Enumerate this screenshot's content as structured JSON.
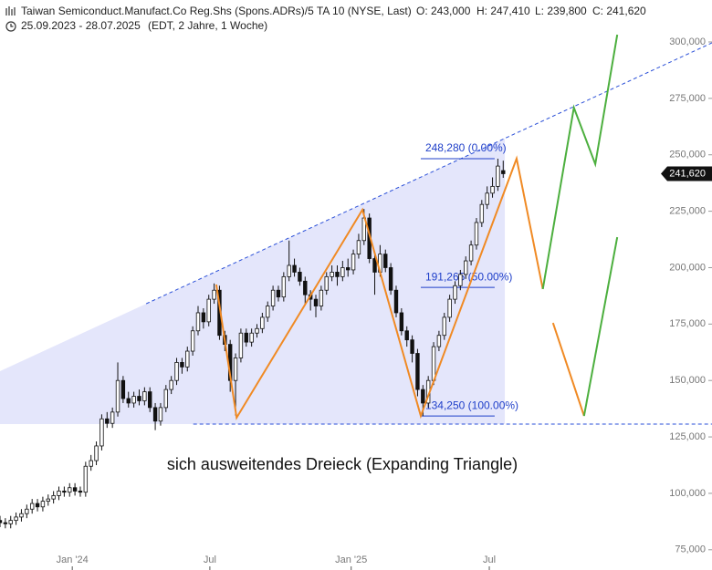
{
  "header": {
    "title": "Taiwan Semiconduct.Manufact.Co Reg.Shs (Spons.ADRs)/5 TA 10 (NYSE, Last)",
    "ohlc": [
      "O: 243,000",
      "H: 247,410",
      "L: 239,800",
      "C: 241,620"
    ],
    "range": "25.09.2023 - 28.07.2025",
    "info": "(EDT, 2 Jahre, 1 Woche)"
  },
  "chart_data": {
    "type": "candlestick",
    "open": [
      88000,
      87000,
      86500,
      88000,
      89500,
      91000,
      93000,
      95500,
      94000,
      96500,
      97500,
      99000,
      101000,
      100500,
      102500,
      101000,
      100500,
      112000,
      114500,
      121000,
      133000,
      131000,
      136000,
      150000,
      142000,
      140000,
      143000,
      141000,
      145000,
      138000,
      132000,
      138000,
      146000,
      150000,
      158000,
      156000,
      163000,
      172000,
      180000,
      176000,
      186000,
      190000,
      170000,
      166000,
      150000,
      160000,
      171000,
      167000,
      171000,
      173000,
      178000,
      183000,
      190000,
      187000,
      196000,
      201000,
      198000,
      194000,
      188000,
      186000,
      183000,
      190000,
      196000,
      198000,
      196000,
      200000,
      199000,
      206000,
      212000,
      222000,
      204000,
      198000,
      206000,
      200000,
      190000,
      180000,
      172000,
      168000,
      162000,
      146000,
      140000,
      150000,
      165000,
      170000,
      178000,
      186000,
      192000,
      197000,
      203000,
      210000,
      220000,
      228000,
      233000,
      236000,
      243000
    ],
    "high": [
      90000,
      89000,
      90000,
      91500,
      93000,
      95000,
      97500,
      97500,
      98500,
      99500,
      101000,
      103000,
      103000,
      104500,
      104500,
      103000,
      114000,
      117000,
      123000,
      135000,
      136000,
      138000,
      158000,
      152000,
      145000,
      145000,
      146000,
      147000,
      147000,
      140000,
      140000,
      148000,
      152000,
      160000,
      160000,
      165000,
      174000,
      183000,
      182000,
      188000,
      193000,
      192000,
      172000,
      168000,
      162000,
      173000,
      173000,
      173000,
      175000,
      180000,
      185000,
      192000,
      192000,
      198000,
      212000,
      204000,
      200000,
      196000,
      190000,
      188000,
      192000,
      198000,
      201000,
      201000,
      203000,
      204000,
      208000,
      215000,
      226000,
      224000,
      206000,
      210000,
      208000,
      202000,
      192000,
      182000,
      174000,
      170000,
      164000,
      148000,
      152000,
      167000,
      172000,
      180000,
      188000,
      194000,
      199000,
      205000,
      212000,
      222000,
      230000,
      236000,
      240000,
      248280,
      247410
    ],
    "low": [
      85000,
      84500,
      84500,
      86000,
      87500,
      89000,
      91000,
      92000,
      92000,
      94500,
      95500,
      97000,
      98500,
      98500,
      99000,
      98500,
      98500,
      110000,
      112500,
      119000,
      129000,
      129000,
      134000,
      140000,
      138000,
      138000,
      139000,
      139000,
      136000,
      128000,
      130000,
      136000,
      144000,
      148000,
      153000,
      154000,
      161000,
      170000,
      173000,
      174000,
      184000,
      168000,
      163000,
      145000,
      134500,
      158000,
      165000,
      165000,
      169000,
      171000,
      176000,
      181000,
      185000,
      185000,
      194000,
      196000,
      192000,
      184000,
      181000,
      178000,
      181000,
      188000,
      194000,
      192000,
      194000,
      196000,
      197000,
      204000,
      210000,
      202000,
      188000,
      196000,
      198000,
      188000,
      178000,
      170000,
      165000,
      158000,
      143000,
      134250,
      138000,
      148000,
      163000,
      168000,
      176000,
      184000,
      190000,
      195000,
      201000,
      208000,
      218000,
      226000,
      231000,
      234000,
      239800
    ],
    "close": [
      87000,
      86500,
      88000,
      89500,
      91000,
      93000,
      95500,
      94000,
      96500,
      97500,
      99000,
      101000,
      100500,
      102500,
      101000,
      100500,
      112000,
      114500,
      121000,
      133000,
      131000,
      136000,
      150000,
      142000,
      140000,
      143000,
      141000,
      145000,
      138000,
      132000,
      138000,
      146000,
      150000,
      158000,
      156000,
      163000,
      172000,
      180000,
      176000,
      186000,
      190000,
      170000,
      166000,
      150000,
      160000,
      171000,
      167000,
      171000,
      173000,
      178000,
      183000,
      190000,
      187000,
      196000,
      201000,
      198000,
      194000,
      188000,
      186000,
      183000,
      190000,
      196000,
      198000,
      196000,
      200000,
      199000,
      206000,
      212000,
      222000,
      204000,
      198000,
      206000,
      200000,
      190000,
      180000,
      172000,
      168000,
      162000,
      146000,
      140000,
      150000,
      165000,
      170000,
      178000,
      186000,
      192000,
      197000,
      203000,
      210000,
      220000,
      228000,
      233000,
      236000,
      245000,
      241620
    ],
    "xlim": [
      0,
      133
    ],
    "ylim": [
      66030,
      318590
    ],
    "yticks": [
      {
        "value": 75000,
        "label": "75,000"
      },
      {
        "value": 100000,
        "label": "100,000"
      },
      {
        "value": 125000,
        "label": "125,000"
      },
      {
        "value": 150000,
        "label": "150,000"
      },
      {
        "value": 175000,
        "label": "175,000"
      },
      {
        "value": 200000,
        "label": "200,000"
      },
      {
        "value": 225000,
        "label": "225,000"
      },
      {
        "value": 250000,
        "label": "250,000"
      },
      {
        "value": 275000,
        "label": "275,000"
      },
      {
        "value": 300000,
        "label": "300,000"
      }
    ],
    "xticks": [
      {
        "value": 13.5,
        "label": "Jan '24"
      },
      {
        "value": 39.2,
        "label": "Jul"
      },
      {
        "value": 65.6,
        "label": "Jan '25"
      },
      {
        "value": 91.4,
        "label": "Jul"
      }
    ],
    "last_price": {
      "value": 241620,
      "label": "241,620"
    },
    "fib_range": [
      78.6,
      92.4
    ],
    "fib_levels": [
      {
        "value": 248280,
        "label": "248,280 (0.00%)"
      },
      {
        "value": 191265,
        "label": "191,265 (50.00%)"
      },
      {
        "value": 134250,
        "label": "134,250 (100.00%)"
      }
    ],
    "upper_trendline": {
      "x": [
        27.3,
        133
      ],
      "y": [
        184000,
        299600
      ]
    },
    "lower_trendline": {
      "x": [
        36.1,
        133
      ],
      "y": [
        130700,
        130700
      ]
    },
    "shade_color": "#e4e6fb",
    "trend_color": "#2a4fd8",
    "drawings": [
      {
        "color": "#f08a24",
        "x": [
          40.4,
          44.2,
          67.7,
          78.6,
          96.5,
          101.4
        ],
        "y": [
          192500,
          133500,
          225650,
          134320,
          248300,
          190500
        ]
      },
      {
        "color": "#f08a24",
        "x": [
          103.3,
          109.1
        ],
        "y": [
          175500,
          134300
        ]
      },
      {
        "color": "#4caf3e",
        "x": [
          101.4,
          107.2,
          111.2,
          115.3
        ],
        "y": [
          190500,
          270900,
          245850,
          303200
        ]
      },
      {
        "color": "#4caf3e",
        "x": [
          109.1,
          115.3
        ],
        "y": [
          134300,
          213500
        ]
      }
    ],
    "annotation": "sich ausweitendes Dreieck (Expanding Triangle)"
  }
}
